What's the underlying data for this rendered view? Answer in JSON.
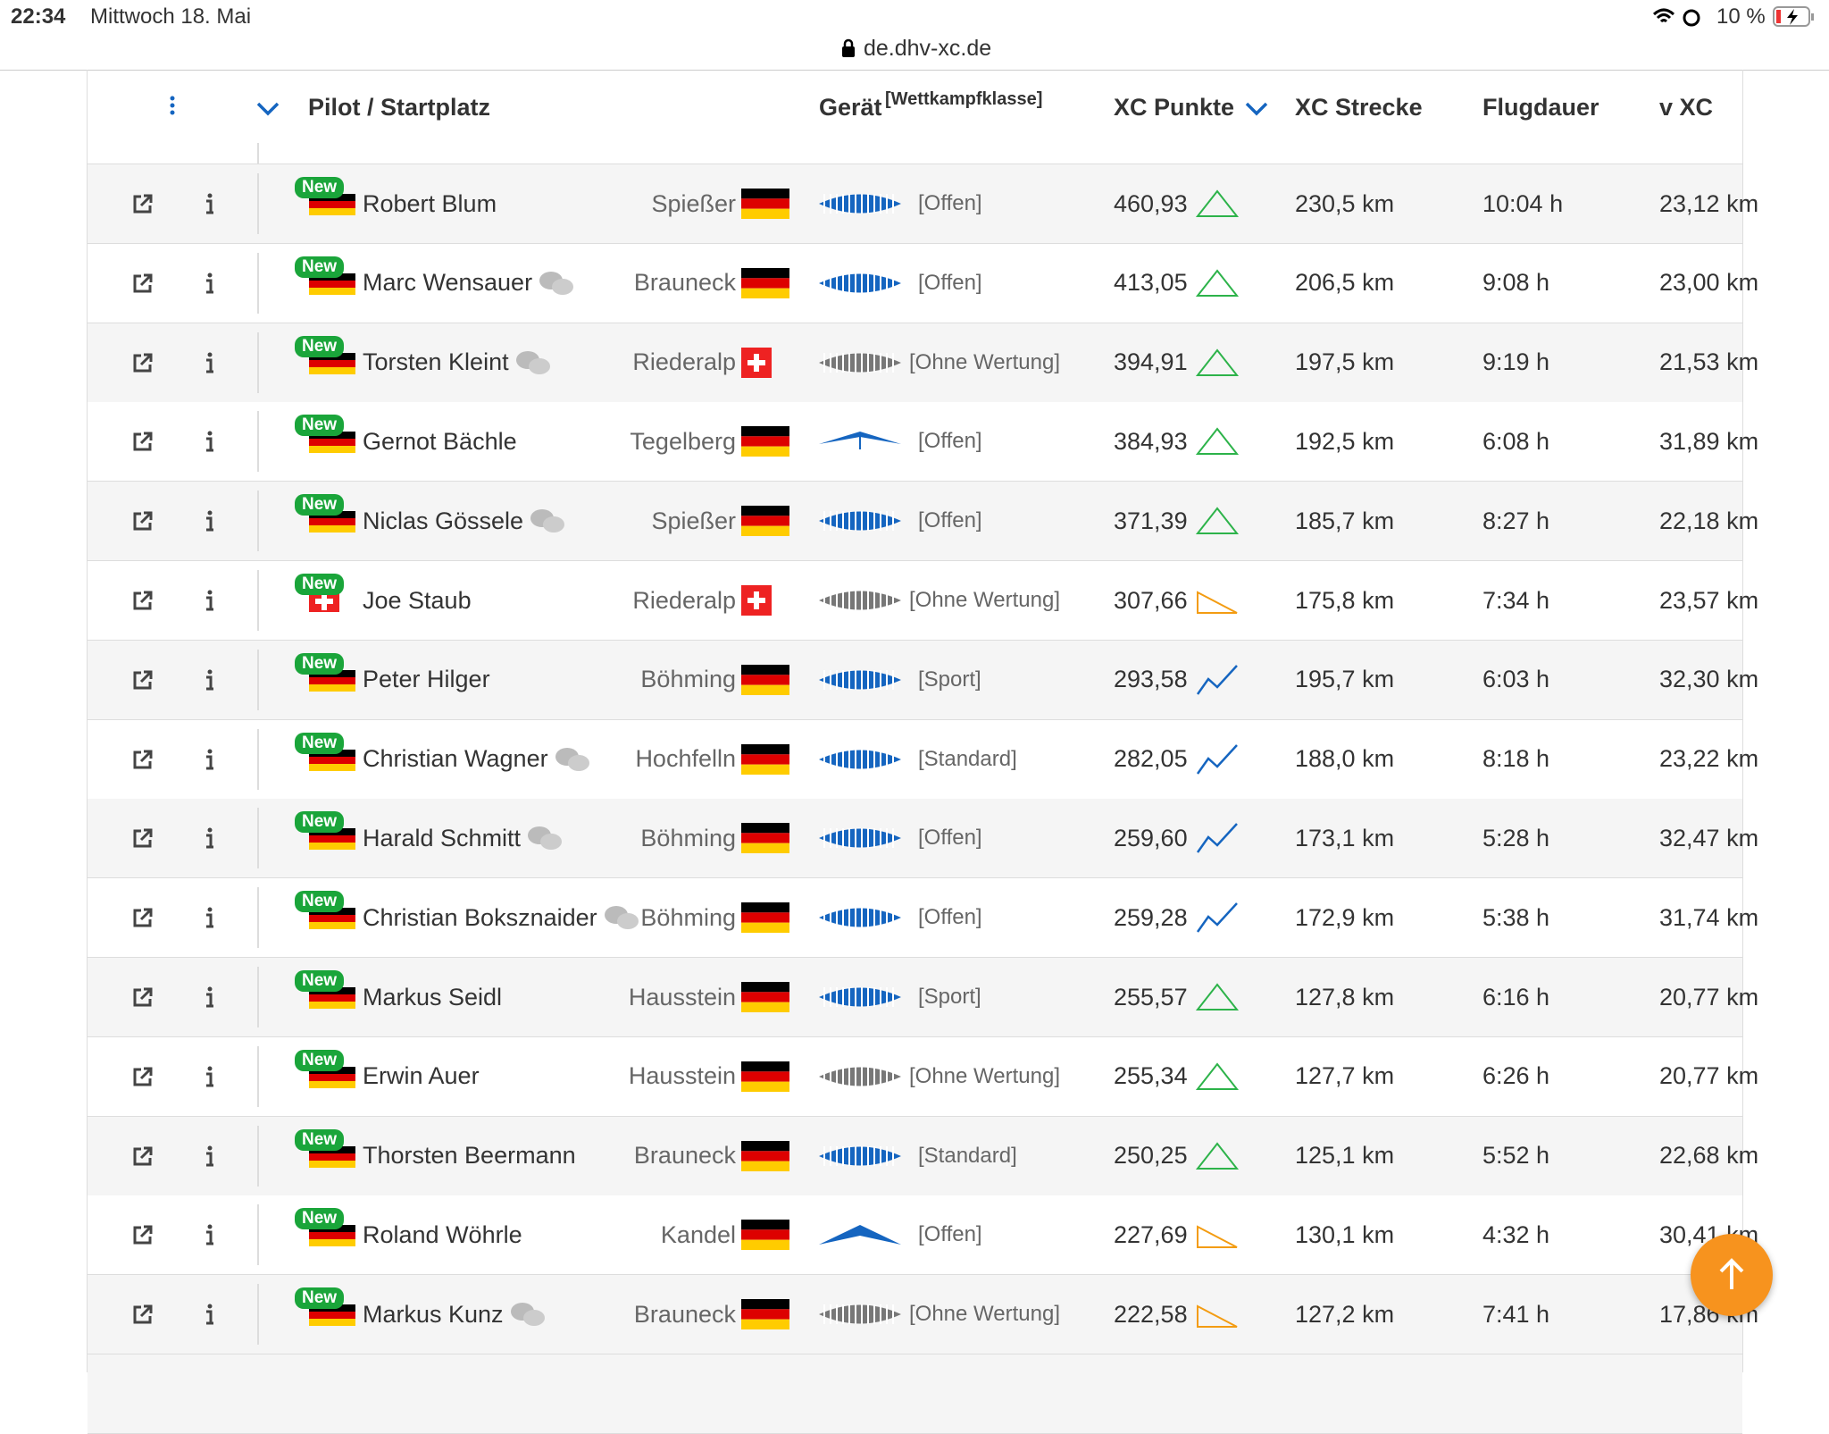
{
  "status_bar": {
    "time": "22:34",
    "date": "Mittwoch 18. Mai",
    "battery": "10 %"
  },
  "url": "de.dhv-xc.de",
  "table": {
    "headers": {
      "pilot": "Pilot / Startplatz",
      "device": "Gerät",
      "device_class": "[Wettkampfklasse]",
      "points": "XC Punkte",
      "distance": "XC Strecke",
      "duration": "Flugdauer",
      "speed": "v XC"
    },
    "rows": [
      {
        "badge": "New",
        "pilot": "Robert Blum",
        "start": "Spießer",
        "class": "[Offen]",
        "points": "460,93",
        "distance": "230,5 km",
        "duration": "10:04 h",
        "speed": "23,12 km"
      },
      {
        "badge": "New",
        "pilot": "Marc Wensauer",
        "start": "Brauneck",
        "class": "[Offen]",
        "points": "413,05",
        "distance": "206,5 km",
        "duration": "9:08 h",
        "speed": "23,00 km"
      },
      {
        "badge": "New",
        "pilot": "Torsten Kleint",
        "start": "Riederalp",
        "class": "[Ohne Wertung]",
        "points": "394,91",
        "distance": "197,5 km",
        "duration": "9:19 h",
        "speed": "21,53 km"
      },
      {
        "badge": "New",
        "pilot": "Gernot Bächle",
        "start": "Tegelberg",
        "class": "[Offen]",
        "points": "384,93",
        "distance": "192,5 km",
        "duration": "6:08 h",
        "speed": "31,89 km"
      },
      {
        "badge": "New",
        "pilot": "Niclas Gössele",
        "start": "Spießer",
        "class": "[Offen]",
        "points": "371,39",
        "distance": "185,7 km",
        "duration": "8:27 h",
        "speed": "22,18 km"
      },
      {
        "badge": "New",
        "pilot": "Joe Staub",
        "start": "Riederalp",
        "class": "[Ohne Wertung]",
        "points": "307,66",
        "distance": "175,8 km",
        "duration": "7:34 h",
        "speed": "23,57 km"
      },
      {
        "badge": "New",
        "pilot": "Peter Hilger",
        "start": "Böhming",
        "class": "[Sport]",
        "points": "293,58",
        "distance": "195,7 km",
        "duration": "6:03 h",
        "speed": "32,30 km"
      },
      {
        "badge": "New",
        "pilot": "Christian Wagner",
        "start": "Hochfelln",
        "class": "[Standard]",
        "points": "282,05",
        "distance": "188,0 km",
        "duration": "8:18 h",
        "speed": "23,22 km"
      },
      {
        "badge": "New",
        "pilot": "Harald Schmitt",
        "start": "Böhming",
        "class": "[Offen]",
        "points": "259,60",
        "distance": "173,1 km",
        "duration": "5:28 h",
        "speed": "32,47 km"
      },
      {
        "badge": "New",
        "pilot": "Christian Boksznaider",
        "start": "Böhming",
        "class": "[Offen]",
        "points": "259,28",
        "distance": "172,9 km",
        "duration": "5:38 h",
        "speed": "31,74 km"
      },
      {
        "badge": "New",
        "pilot": "Markus Seidl",
        "start": "Hausstein",
        "class": "[Sport]",
        "points": "255,57",
        "distance": "127,8 km",
        "duration": "6:16 h",
        "speed": "20,77 km"
      },
      {
        "badge": "New",
        "pilot": "Erwin Auer",
        "start": "Hausstein",
        "class": "[Ohne Wertung]",
        "points": "255,34",
        "distance": "127,7 km",
        "duration": "6:26 h",
        "speed": "20,77 km"
      },
      {
        "badge": "New",
        "pilot": "Thorsten Beermann",
        "start": "Brauneck",
        "class": "[Standard]",
        "points": "250,25",
        "distance": "125,1 km",
        "duration": "5:52 h",
        "speed": "22,68 km"
      },
      {
        "badge": "New",
        "pilot": "Roland Wöhrle",
        "start": "Kandel",
        "class": "[Offen]",
        "points": "227,69",
        "distance": "130,1 km",
        "duration": "4:32 h",
        "speed": "30,41 km"
      },
      {
        "badge": "New",
        "pilot": "Markus Kunz",
        "start": "Brauneck",
        "class": "[Ohne Wertung]",
        "points": "222,58",
        "distance": "127,2 km",
        "duration": "7:41 h",
        "speed": "17,86 km"
      }
    ]
  }
}
